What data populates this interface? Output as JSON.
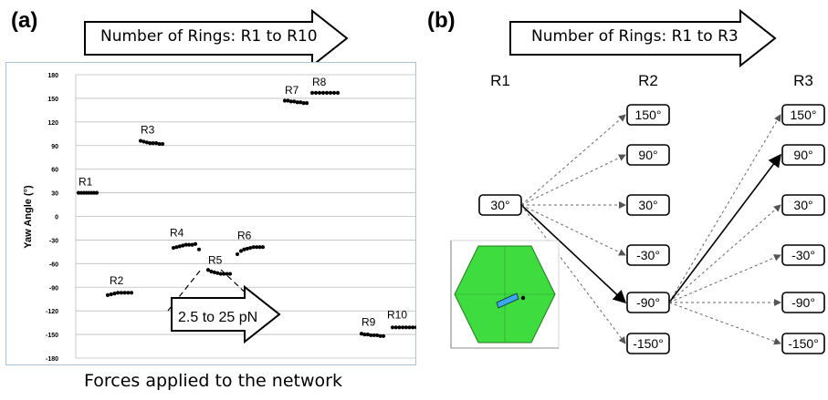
{
  "panel_a": {
    "label": "(a)",
    "arrow_text": "Number of Rings: R1 to R10",
    "caption": "Forces applied to the network",
    "force_box": "2.5 to 25 pN"
  },
  "panel_b": {
    "label": "(b)",
    "arrow_text": "Number of Rings: R1 to R3",
    "columns": [
      {
        "name": "R1",
        "values": [
          "30°"
        ]
      },
      {
        "name": "R2",
        "values": [
          "150°",
          "90°",
          "30°",
          "-30°",
          "-90°",
          "-150°"
        ]
      },
      {
        "name": "R3",
        "values": [
          "150°",
          "90°",
          "30°",
          "-30°",
          "-90°",
          "-150°"
        ]
      }
    ]
  },
  "chart_data": {
    "type": "scatter",
    "title": "",
    "xlabel": "",
    "ylabel": "Yaw Angle (°)",
    "ylim": [
      -180,
      180
    ],
    "yticks": [
      180,
      150,
      120,
      90,
      60,
      30,
      0,
      -30,
      -60,
      -90,
      -120,
      -150,
      -180
    ],
    "grid": true,
    "series": [
      {
        "name": "R1",
        "values": [
          30,
          30,
          30,
          30,
          30,
          30,
          30,
          30
        ]
      },
      {
        "name": "R2",
        "values": [
          -100,
          -99,
          -98,
          -97,
          -97,
          -97,
          -97,
          -97
        ]
      },
      {
        "name": "R3",
        "values": [
          96,
          95,
          94,
          93,
          93,
          93,
          92,
          92
        ]
      },
      {
        "name": "R4",
        "values": [
          -40,
          -39,
          -38,
          -37,
          -36,
          -36,
          -36,
          -35
        ]
      },
      {
        "name": "R5",
        "values": [
          -68,
          -70,
          -71,
          -72,
          -73,
          -73,
          -73,
          -73
        ]
      },
      {
        "name": "R6",
        "values": [
          -44,
          -42,
          -41,
          -40,
          -39,
          -39,
          -39,
          -39
        ]
      },
      {
        "name": "R7",
        "values": [
          147,
          147,
          146,
          146,
          145,
          145,
          144,
          144
        ]
      },
      {
        "name": "R8",
        "values": [
          157,
          157,
          157,
          157,
          157,
          157,
          157,
          157
        ]
      },
      {
        "name": "R9",
        "values": [
          -149,
          -150,
          -150,
          -151,
          -151,
          -151,
          -152,
          -152
        ]
      },
      {
        "name": "R10",
        "values": [
          -141,
          -141,
          -141,
          -141,
          -141,
          -141,
          -141,
          -141
        ]
      }
    ]
  }
}
